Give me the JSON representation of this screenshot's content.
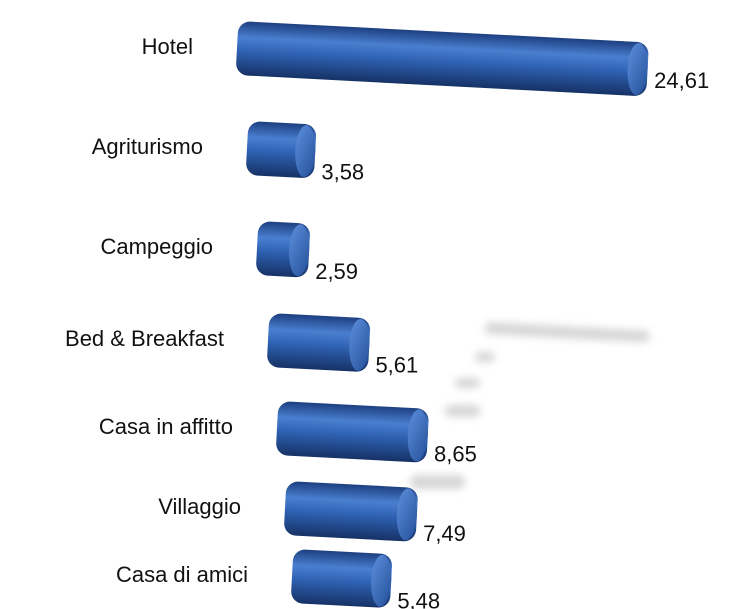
{
  "chart_data": {
    "type": "bar",
    "orientation": "horizontal",
    "categories": [
      "Hotel",
      "Agriturismo",
      "Campeggio",
      "Bed & Breakfast",
      "Casa in affitto",
      "Villaggio",
      "Casa di amici"
    ],
    "values": [
      24.61,
      3.58,
      2.59,
      5.61,
      8.65,
      7.49,
      5.48
    ],
    "value_labels": [
      "24,61",
      "3,58",
      "2,59",
      "5,61",
      "8,65",
      "7,49",
      "5,48"
    ],
    "color": "#2f62b3"
  }
}
